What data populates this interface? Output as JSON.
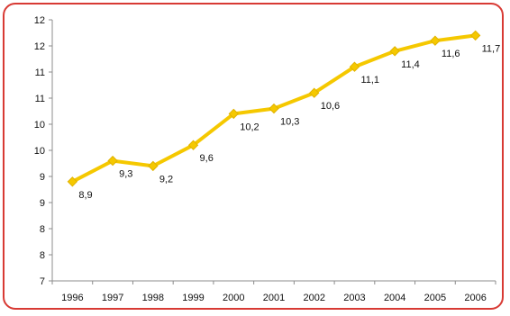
{
  "chart_data": {
    "type": "line",
    "title": "",
    "xlabel": "",
    "ylabel": "",
    "categories": [
      "1996",
      "1997",
      "1998",
      "1999",
      "2000",
      "2001",
      "2002",
      "2003",
      "2004",
      "2005",
      "2006"
    ],
    "series": [
      {
        "values": [
          8.9,
          9.3,
          9.2,
          9.6,
          10.2,
          10.3,
          10.6,
          11.1,
          11.4,
          11.6,
          11.7
        ],
        "labels": [
          "8,9",
          "9,3",
          "9,2",
          "9,6",
          "10,2",
          "10,3",
          "10,6",
          "11,1",
          "11,4",
          "11,6",
          "11,7"
        ],
        "color": "#f5c800",
        "marker": "diamond"
      }
    ],
    "ylim": [
      7,
      12
    ],
    "yticks": [
      7,
      7.5,
      8,
      8.5,
      9,
      9.5,
      10,
      10.5,
      11,
      11.5,
      12
    ],
    "ytick_labels": [
      "7",
      "8",
      "8",
      "9",
      "9",
      "10",
      "10",
      "11",
      "11",
      "12",
      "12"
    ],
    "grid": false,
    "legend": "none",
    "frame_color": "#d83a34"
  }
}
